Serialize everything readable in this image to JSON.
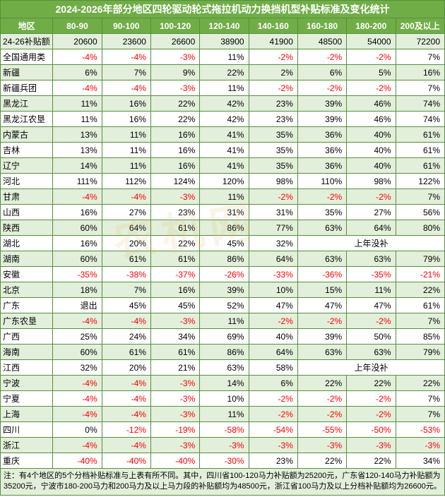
{
  "title": "2024-2026年部分地区四轮驱动轮式拖拉机动力换挡机型补贴标准及变化统计",
  "columns": [
    "地区",
    "80-90",
    "90-100",
    "100-120",
    "120-140",
    "140-160",
    "160-180",
    "180-200",
    "200及以上"
  ],
  "subsidy_label": "24-26补贴额",
  "subsidy_values": [
    "20600",
    "23600",
    "26600",
    "38900",
    "41900",
    "48500",
    "54000",
    "72200"
  ],
  "note": "注：有4个地区的5个分档补贴标准与上表有所不同。其中，四川省100-120马力补贴额为25200元，广东省120-140马力补贴额为35200元，宁波市180-200马力和200马力及以上马力段的补贴额均为48500元，浙江省100马力及以上分档补贴额均为26600元。",
  "no_sub_text": "上年没补",
  "colors": {
    "header_bg": "#70ad47",
    "band_even_bg": "#e2efda",
    "band_odd_bg": "#ffffff",
    "border": "#568f3f",
    "negative": "#ff0000"
  },
  "rows": [
    {
      "region": "全国通用类",
      "vals": [
        "-4%",
        "-4%",
        "-3%",
        "11%",
        "-2%",
        "-2%",
        "-2%",
        "7%"
      ]
    },
    {
      "region": "新疆",
      "vals": [
        "6%",
        "7%",
        "9%",
        "22%",
        "2%",
        "6%",
        "5%",
        "16%"
      ]
    },
    {
      "region": "新疆兵团",
      "vals": [
        "-4%",
        "-4%",
        "-3%",
        "11%",
        "-2%",
        "-2%",
        "-2%",
        "7%"
      ]
    },
    {
      "region": "黑龙江",
      "vals": [
        "11%",
        "16%",
        "22%",
        "42%",
        "23%",
        "39%",
        "46%",
        "74%"
      ]
    },
    {
      "region": "黑龙江农垦",
      "vals": [
        "11%",
        "16%",
        "22%",
        "42%",
        "23%",
        "39%",
        "46%",
        "74%"
      ]
    },
    {
      "region": "内蒙古",
      "vals": [
        "13%",
        "11%",
        "16%",
        "41%",
        "35%",
        "36%",
        "40%",
        "61%"
      ]
    },
    {
      "region": "吉林",
      "vals": [
        "13%",
        "11%",
        "16%",
        "41%",
        "35%",
        "36%",
        "40%",
        "61%"
      ]
    },
    {
      "region": "辽宁",
      "vals": [
        "14%",
        "11%",
        "16%",
        "41%",
        "35%",
        "36%",
        "40%",
        "61%"
      ]
    },
    {
      "region": "河北",
      "vals": [
        "111%",
        "112%",
        "124%",
        "120%",
        "98%",
        "110%",
        "98%",
        "122%"
      ]
    },
    {
      "region": "甘肃",
      "vals": [
        "-4%",
        "-4%",
        "-3%",
        "11%",
        "-2%",
        "-2%",
        "-2%",
        "7%"
      ]
    },
    {
      "region": "山西",
      "vals": [
        "16%",
        "27%",
        "23%",
        "31%",
        "31%",
        "35%",
        "27%",
        "56%"
      ]
    },
    {
      "region": "陕西",
      "vals": [
        "60%",
        "64%",
        "61%",
        "86%",
        "77%",
        "63%",
        "64%",
        "80%"
      ]
    },
    {
      "region": "湖北",
      "vals": [
        "16%",
        "20%",
        "22%",
        "45%",
        "32%"
      ],
      "merge_last": 3
    },
    {
      "region": "湖南",
      "vals": [
        "60%",
        "61%",
        "61%",
        "86%",
        "64%",
        "63%",
        "63%",
        "79%"
      ]
    },
    {
      "region": "安徽",
      "vals": [
        "-35%",
        "-38%",
        "-37%",
        "-26%",
        "-33%",
        "-36%",
        "-35%",
        "-21%"
      ]
    },
    {
      "region": "北京",
      "vals": [
        "18%",
        "7%",
        "16%",
        "39%",
        "10%",
        "15%",
        "11%",
        "22%"
      ]
    },
    {
      "region": "广东",
      "vals": [
        "退出",
        "45%",
        "45%",
        "52%",
        "47%",
        "47%",
        "47%",
        "61%"
      ]
    },
    {
      "region": "广东农垦",
      "vals": [
        "-4%",
        "-4%",
        "-3%",
        "11%",
        "-2%",
        "-2%",
        "-2%",
        "7%"
      ]
    },
    {
      "region": "广西",
      "vals": [
        "25%",
        "24%",
        "34%",
        "69%",
        "40%",
        "39%",
        "50%",
        "85%"
      ]
    },
    {
      "region": "海南",
      "vals": [
        "60%",
        "61%",
        "61%",
        "86%",
        "64%",
        "63%",
        "63%",
        "79%"
      ]
    },
    {
      "region": "江西",
      "vals": [
        "32%",
        "20%",
        "21%",
        "63%",
        "58%"
      ],
      "merge_last": 3
    },
    {
      "region": "宁波",
      "vals": [
        "-4%",
        "-4%",
        "-3%",
        "14%",
        "6%",
        "22%",
        "22%",
        "22%"
      ]
    },
    {
      "region": "宁夏",
      "vals": [
        "-4%",
        "-4%",
        "-3%",
        "10%",
        "-2%",
        "-2%",
        "-2%",
        "7%"
      ]
    },
    {
      "region": "上海",
      "vals": [
        "-4%",
        "-4%",
        "-3%",
        "11%",
        "-2%",
        "-2%",
        "-2%",
        "7%"
      ]
    },
    {
      "region": "四川",
      "vals": [
        "0%",
        "-12%",
        "-19%",
        "-58%",
        "-54%",
        "-55%",
        "-50%",
        "-53%"
      ]
    },
    {
      "region": "浙江",
      "vals": [
        "-4%",
        "-4%",
        "-3%",
        "-3%",
        "-3%",
        "-3%",
        "-3%",
        "-3%"
      ]
    },
    {
      "region": "重庆",
      "vals": [
        "-40%",
        "-40%",
        "-40%",
        "-30%",
        "23%",
        "22%",
        "22%",
        "34%"
      ]
    }
  ]
}
